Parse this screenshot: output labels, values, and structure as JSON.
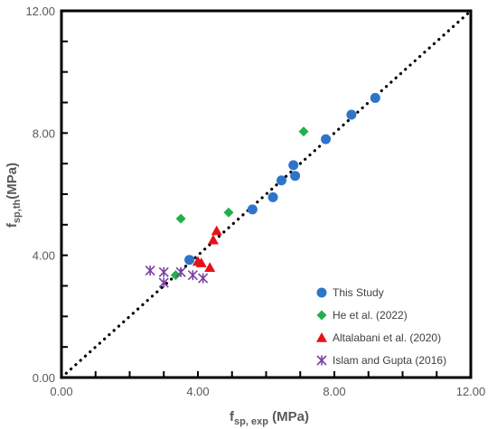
{
  "chart_data": {
    "type": "scatter",
    "title": "",
    "xlabel": {
      "main": "f",
      "sub": "sp, exp",
      "unit": " (MPa)"
    },
    "ylabel": {
      "main": "f",
      "sub": "sp,th",
      "unit": "(MPa)"
    },
    "xlim": [
      0,
      12
    ],
    "ylim": [
      0,
      12
    ],
    "ticks": [
      0,
      4,
      8,
      12
    ],
    "x_tick_labels": [
      "0.00",
      "4.00",
      "8.00",
      "12.00"
    ],
    "y_tick_labels": [
      "0.00",
      "4.00",
      "8.00",
      "12.00"
    ],
    "grid": false,
    "legend_position": "bottom-right",
    "reference_line": {
      "style": "dotted",
      "from": [
        0,
        0
      ],
      "to": [
        12,
        12
      ]
    },
    "series": [
      {
        "name": "This Study",
        "marker": "circle",
        "color": "#2e75c9",
        "points": [
          [
            3.75,
            3.85
          ],
          [
            5.6,
            5.5
          ],
          [
            6.2,
            5.9
          ],
          [
            6.45,
            6.45
          ],
          [
            6.8,
            6.95
          ],
          [
            6.85,
            6.6
          ],
          [
            7.75,
            7.8
          ],
          [
            8.5,
            8.6
          ],
          [
            9.2,
            9.15
          ]
        ]
      },
      {
        "name": "He et al. (2022)",
        "marker": "diamond",
        "color": "#22b04b",
        "points": [
          [
            3.35,
            3.35
          ],
          [
            3.5,
            5.2
          ],
          [
            4.9,
            5.4
          ],
          [
            7.1,
            8.05
          ]
        ]
      },
      {
        "name": "Altalabani et al. (2020)",
        "marker": "triangle",
        "color": "#e8101a",
        "points": [
          [
            4.0,
            3.8
          ],
          [
            4.1,
            3.75
          ],
          [
            4.35,
            3.6
          ],
          [
            4.45,
            4.5
          ],
          [
            4.55,
            4.8
          ]
        ]
      },
      {
        "name": "Islam and Gupta (2016)",
        "marker": "star",
        "color": "#7b3fa0",
        "points": [
          [
            2.6,
            3.5
          ],
          [
            3.0,
            3.1
          ],
          [
            3.0,
            3.45
          ],
          [
            3.5,
            3.45
          ],
          [
            3.85,
            3.35
          ],
          [
            4.15,
            3.25
          ]
        ]
      }
    ]
  }
}
